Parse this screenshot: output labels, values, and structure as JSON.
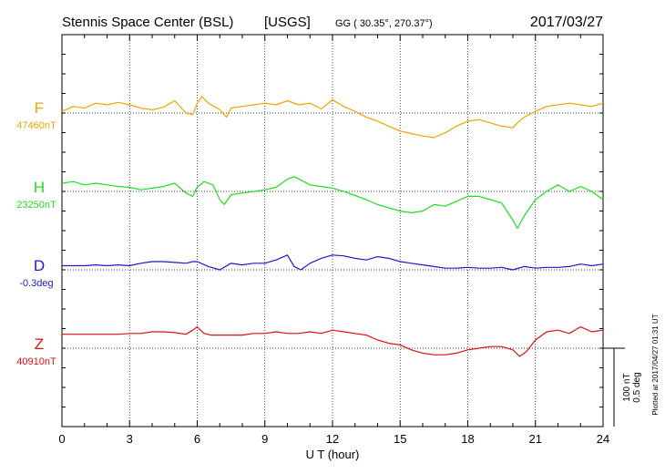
{
  "header": {
    "station": "Stennis Space Center (BSL)",
    "org": "[USGS]",
    "coords": "GG ( 30.35°, 270.37°)",
    "date": "2017/03/27"
  },
  "chart_data": {
    "type": "line",
    "xlabel": "U T (hour)",
    "xlim": [
      0,
      24
    ],
    "xticks": [
      0,
      3,
      6,
      9,
      12,
      15,
      18,
      21,
      24
    ],
    "grid": true,
    "series": [
      {
        "name": "F",
        "baseline_label": "47460nT",
        "color": "#f0a400",
        "x": [
          0,
          0.5,
          1,
          1.5,
          2,
          2.5,
          3,
          3.5,
          4,
          4.5,
          5,
          5.5,
          5.8,
          6,
          6.2,
          6.5,
          7,
          7.3,
          7.5,
          8,
          8.5,
          9,
          9.5,
          10,
          10.5,
          11,
          11.5,
          12,
          12.5,
          13,
          13.5,
          14,
          14.5,
          15,
          15.5,
          16,
          16.5,
          17,
          17.5,
          18,
          18.5,
          19,
          19.5,
          20,
          20.2,
          20.5,
          21,
          21.5,
          22,
          22.5,
          23,
          23.5,
          24
        ],
        "y": [
          48,
          42,
          44,
          38,
          40,
          37,
          40,
          44,
          46,
          43,
          35,
          50,
          52,
          38,
          30,
          38,
          46,
          55,
          44,
          42,
          40,
          38,
          40,
          35,
          40,
          38,
          45,
          34,
          42,
          48,
          55,
          60,
          66,
          72,
          75,
          78,
          80,
          74,
          66,
          60,
          58,
          62,
          66,
          68,
          62,
          55,
          48,
          42,
          40,
          38,
          40,
          42,
          38
        ]
      },
      {
        "name": "H",
        "baseline_label": "23250nT",
        "color": "#22dd22",
        "x": [
          0,
          0.5,
          1,
          1.5,
          2,
          2.5,
          3,
          3.5,
          4,
          4.5,
          5,
          5.5,
          5.8,
          6,
          6.3,
          6.7,
          7,
          7.2,
          7.5,
          8,
          8.5,
          9,
          9.5,
          10,
          10.3,
          10.6,
          11,
          11.5,
          12,
          12.5,
          13,
          13.5,
          14,
          14.5,
          15,
          15.5,
          16,
          16.5,
          17,
          17.5,
          18,
          18.5,
          19,
          19.5,
          20,
          20.2,
          20.5,
          21,
          21.5,
          22,
          22.5,
          23,
          23.5,
          24
        ],
        "y": [
          40,
          38,
          42,
          40,
          42,
          44,
          45,
          48,
          46,
          44,
          40,
          52,
          56,
          45,
          38,
          42,
          60,
          66,
          54,
          52,
          50,
          48,
          45,
          35,
          32,
          36,
          42,
          44,
          46,
          50,
          55,
          60,
          66,
          70,
          74,
          76,
          74,
          66,
          68,
          62,
          56,
          56,
          60,
          64,
          85,
          95,
          80,
          60,
          50,
          42,
          50,
          44,
          50,
          60
        ]
      },
      {
        "name": "D",
        "baseline_label": "-0.3deg",
        "color": "#1a1acc",
        "x": [
          0,
          0.5,
          1,
          1.5,
          2,
          2.5,
          3,
          3.5,
          4,
          4.5,
          5,
          5.5,
          5.8,
          6,
          6.5,
          7,
          7.5,
          8,
          8.5,
          9,
          9.5,
          10,
          10.3,
          10.6,
          11,
          11.5,
          12,
          12.5,
          13,
          13.5,
          14,
          14.5,
          15,
          15.5,
          16,
          16.5,
          17,
          17.5,
          18,
          18.5,
          19,
          19.5,
          20,
          20.5,
          21,
          21.5,
          22,
          22.5,
          23,
          23.5,
          24
        ],
        "y": [
          45,
          45,
          45,
          44,
          45,
          44,
          45,
          42,
          40,
          40,
          41,
          42,
          40,
          40,
          46,
          50,
          42,
          44,
          42,
          42,
          38,
          32,
          46,
          50,
          42,
          36,
          32,
          33,
          36,
          38,
          34,
          36,
          40,
          42,
          44,
          46,
          48,
          48,
          47,
          48,
          48,
          47,
          50,
          46,
          48,
          47,
          47,
          46,
          43,
          45,
          43
        ]
      },
      {
        "name": "Z",
        "baseline_label": "40910nT",
        "color": "#dd1111",
        "x": [
          0,
          0.5,
          1,
          1.5,
          2,
          2.5,
          3,
          3.5,
          4,
          4.5,
          5,
          5.5,
          5.8,
          6,
          6.3,
          6.6,
          7,
          7.5,
          8,
          8.5,
          9,
          9.5,
          10,
          10.5,
          11,
          11.5,
          12,
          12.5,
          13,
          13.5,
          14,
          14.5,
          15,
          15.5,
          16,
          16.5,
          17,
          17.5,
          18,
          18.5,
          19,
          19.5,
          20,
          20.3,
          20.6,
          21,
          21.5,
          22,
          22.5,
          23,
          23.5,
          24
        ],
        "y": [
          33,
          33,
          33,
          33,
          33,
          33,
          32,
          32,
          30,
          30,
          31,
          33,
          28,
          24,
          32,
          34,
          34,
          34,
          34,
          32,
          32,
          30,
          32,
          32,
          30,
          32,
          28,
          30,
          32,
          34,
          40,
          44,
          46,
          52,
          56,
          58,
          58,
          56,
          52,
          50,
          48,
          48,
          52,
          60,
          54,
          40,
          30,
          28,
          32,
          24,
          30,
          28
        ]
      }
    ],
    "scale_bar": {
      "nT": "100 nT",
      "deg": "0.5 deg"
    },
    "footer_note": "Plotted at 2017/04/27 01:31  UT"
  }
}
